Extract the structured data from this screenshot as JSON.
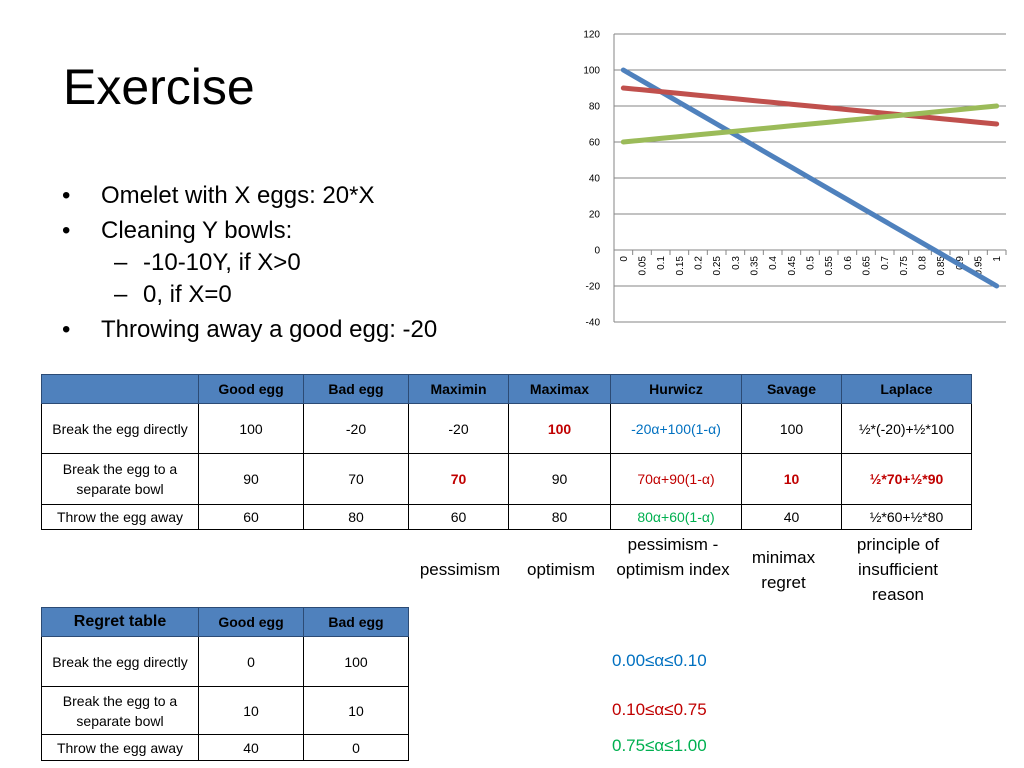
{
  "slide": {
    "title": "Exercise",
    "bullets": [
      {
        "level": 1,
        "text": "Omelet with X eggs: 20*X"
      },
      {
        "level": 1,
        "text": "Cleaning Y bowls:"
      },
      {
        "level": 2,
        "text": "-10-10Y, if X>0"
      },
      {
        "level": 2,
        "text": "0, if X=0"
      },
      {
        "level": 1,
        "text": "Throwing away a good egg: -20"
      }
    ]
  },
  "chart_data": {
    "type": "line",
    "title": "",
    "xlabel": "",
    "ylabel": "",
    "x": [
      "0",
      "0.05",
      "0.1",
      "0.15",
      "0.2",
      "0.25",
      "0.3",
      "0.35",
      "0.4",
      "0.45",
      "0.5",
      "0.55",
      "0.6",
      "0.65",
      "0.7",
      "0.75",
      "0.8",
      "0.85",
      "0.9",
      "0.95",
      "1"
    ],
    "ylim": [
      -40,
      120
    ],
    "yticks": [
      -40,
      -20,
      0,
      20,
      40,
      60,
      80,
      100,
      120
    ],
    "grid": true,
    "legend": "none",
    "series": [
      {
        "color": "#4f81bd",
        "values": [
          100,
          94,
          88,
          82,
          76,
          70,
          64,
          58,
          52,
          46,
          40,
          34,
          28,
          22,
          16,
          10,
          4,
          -2,
          -8,
          -14,
          -20
        ]
      },
      {
        "color": "#c0504d",
        "values": [
          90,
          89,
          88,
          87,
          86,
          85,
          84,
          83,
          82,
          81,
          80,
          79,
          78,
          77,
          76,
          75,
          74,
          73,
          72,
          71,
          70
        ]
      },
      {
        "color": "#9bbb59",
        "values": [
          60,
          61,
          62,
          63,
          64,
          65,
          66,
          67,
          68,
          69,
          70,
          71,
          72,
          73,
          74,
          75,
          76,
          77,
          78,
          79,
          80
        ]
      }
    ]
  },
  "main_table": {
    "headers": [
      "",
      "Good egg",
      "Bad egg",
      "Maximin",
      "Maximax",
      "Hurwicz",
      "Savage",
      "Laplace"
    ],
    "rows": [
      {
        "label": "Break the egg directly",
        "good": "100",
        "bad": "-20",
        "maximin": "-20",
        "maximax": "100",
        "hurwicz": "-20α+100(1-α)",
        "savage": "100",
        "laplace": "½*(-20)+½*100"
      },
      {
        "label": "Break the egg to a separate bowl",
        "good": "90",
        "bad": "70",
        "maximin": "70",
        "maximax": "90",
        "hurwicz": "70α+90(1-α)",
        "savage": "10",
        "laplace": "½*70+½*90"
      },
      {
        "label": "Throw the egg away",
        "good": "60",
        "bad": "80",
        "maximin": "60",
        "maximax": "80",
        "hurwicz": "80α+60(1-α)",
        "savage": "40",
        "laplace": "½*60+½*80"
      }
    ],
    "colors": {
      "red": "#c00000",
      "blue": "#0070c0",
      "green": "#00b050",
      "header": "#4f81bd"
    }
  },
  "criteria_notes": {
    "maximin": "pessimism",
    "maximax": "optimism",
    "hurwicz": "pessimism - optimism index",
    "savage": "minimax regret",
    "laplace": "principle of insufficient reason"
  },
  "regret_table": {
    "headers": [
      "Regret table",
      "Good egg",
      "Bad egg"
    ],
    "rows": [
      {
        "label": "Break the egg directly",
        "good": "0",
        "bad": "100"
      },
      {
        "label": "Break the egg to a separate bowl",
        "good": "10",
        "bad": "10"
      },
      {
        "label": "Throw the egg away",
        "good": "40",
        "bad": "0"
      }
    ]
  },
  "alpha_ranges": [
    "0.00≤α≤0.10",
    "0.10≤α≤0.75",
    "0.75≤α≤1.00"
  ]
}
